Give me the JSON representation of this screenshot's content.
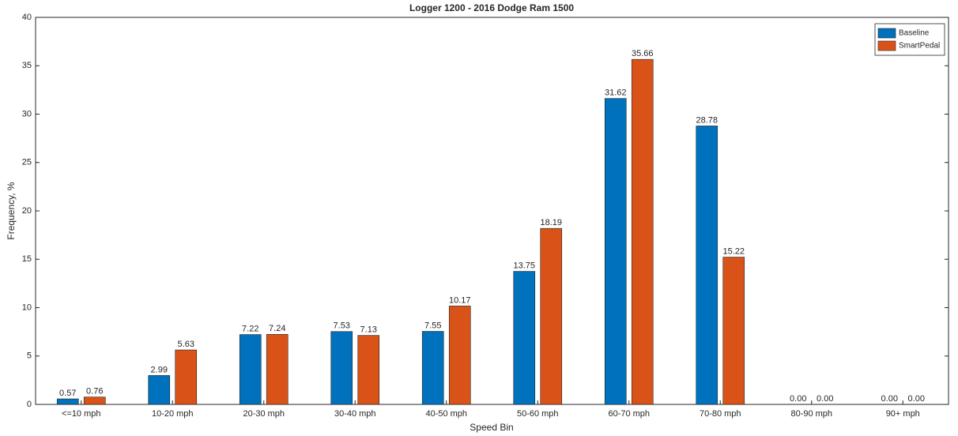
{
  "chart_data": {
    "type": "bar",
    "title": "Logger 1200 - 2016 Dodge Ram 1500",
    "xlabel": "Speed Bin",
    "ylabel": "Frequency, %",
    "categories": [
      "<=10 mph",
      "10-20 mph",
      "20-30 mph",
      "30-40 mph",
      "40-50 mph",
      "50-60 mph",
      "60-70 mph",
      "70-80 mph",
      "80-90 mph",
      "90+ mph"
    ],
    "series": [
      {
        "name": "Baseline",
        "color": "#0072bd",
        "values": [
          0.57,
          2.99,
          7.22,
          7.53,
          7.55,
          13.75,
          31.62,
          28.78,
          0,
          0
        ],
        "value_labels": [
          "0.57",
          "2.99",
          "7.22",
          "7.53",
          "7.55",
          "13.75",
          "31.62",
          "28.78",
          "0.00",
          "0.00"
        ]
      },
      {
        "name": "SmartPedal",
        "color": "#d95319",
        "values": [
          0.76,
          5.63,
          7.24,
          7.13,
          10.17,
          18.19,
          35.66,
          15.22,
          0,
          0
        ],
        "value_labels": [
          "0.76",
          "5.63",
          "7.24",
          "7.13",
          "10.17",
          "18.19",
          "35.66",
          "15.22",
          "0.00",
          "0.00"
        ]
      }
    ],
    "ylim": [
      0,
      40
    ],
    "yticks": [
      0,
      5,
      10,
      15,
      20,
      25,
      30,
      35,
      40
    ],
    "grid": false,
    "legend": "top-right"
  }
}
